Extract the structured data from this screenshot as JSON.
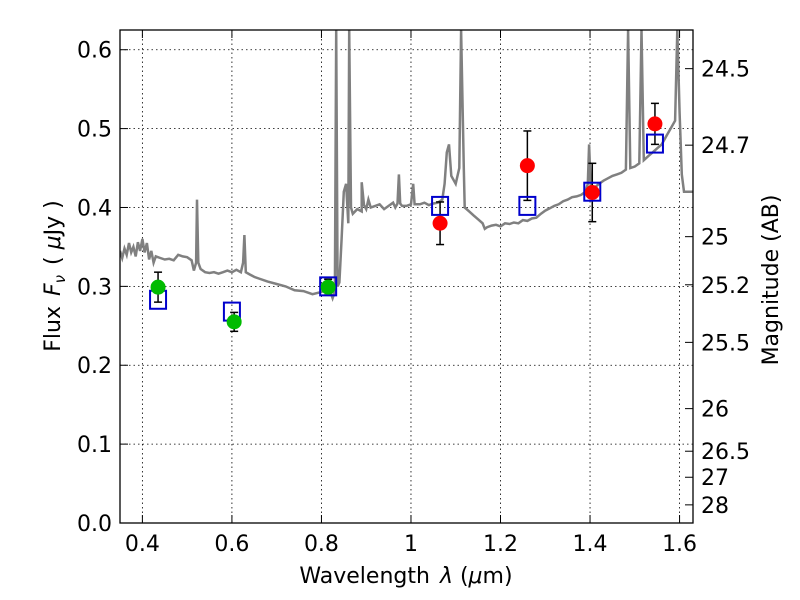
{
  "chart_data": {
    "type": "scatter",
    "xlabel": "Wavelength",
    "xlabel_symbol": "λ",
    "xlabel_unit_open": " (",
    "xlabel_unit_mu": "μ",
    "xlabel_unit_close": "m)",
    "ylabel": "Flux",
    "ylabel_symbol": "F",
    "ylabel_subscript": "ν",
    "ylabel_unit_open": "( ",
    "ylabel_unit_mu": "μ",
    "ylabel_unit_close": "Jy )",
    "y2label": "Magnitude (AB)",
    "xlim": [
      0.35,
      1.63
    ],
    "ylim": [
      0.0,
      0.625
    ],
    "grid": true,
    "x_ticks": [
      0.4,
      0.6,
      0.8,
      1.0,
      1.2,
      1.4,
      1.6
    ],
    "x_tick_labels": [
      "0.4",
      "0.6",
      "0.8",
      "1",
      "1.2",
      "1.4",
      "1.6"
    ],
    "y_ticks": [
      0.0,
      0.1,
      0.2,
      0.3,
      0.4,
      0.5,
      0.6
    ],
    "y_tick_labels": [
      "0.0",
      "0.1",
      "0.2",
      "0.3",
      "0.4",
      "0.5",
      "0.6"
    ],
    "y2_ticks": [
      {
        "label": "24.5",
        "flux": 0.576
      },
      {
        "label": "24.7",
        "flux": 0.479
      },
      {
        "label": "25",
        "flux": 0.363
      },
      {
        "label": "25.2",
        "flux": 0.302
      },
      {
        "label": "25.5",
        "flux": 0.229
      },
      {
        "label": "26",
        "flux": 0.145
      },
      {
        "label": "26.5",
        "flux": 0.091
      },
      {
        "label": "27",
        "flux": 0.058
      },
      {
        "label": "28",
        "flux": 0.023
      }
    ],
    "colors": {
      "spectrum": "#808080",
      "green_points": "#00bb00",
      "red_points": "#ff0000",
      "model_boxes": "#0000cc",
      "errorbars": "#000000"
    },
    "series": [
      {
        "kind": "model-spectrum",
        "points": [
          [
            0.35,
            0.345
          ],
          [
            0.355,
            0.336
          ],
          [
            0.36,
            0.348
          ],
          [
            0.365,
            0.34
          ],
          [
            0.37,
            0.355
          ],
          [
            0.375,
            0.343
          ],
          [
            0.38,
            0.35
          ],
          [
            0.385,
            0.338
          ],
          [
            0.39,
            0.356
          ],
          [
            0.395,
            0.345
          ],
          [
            0.4,
            0.36
          ],
          [
            0.405,
            0.343
          ],
          [
            0.41,
            0.355
          ],
          [
            0.415,
            0.334
          ],
          [
            0.42,
            0.345
          ],
          [
            0.425,
            0.33
          ],
          [
            0.43,
            0.338
          ],
          [
            0.44,
            0.336
          ],
          [
            0.45,
            0.334
          ],
          [
            0.46,
            0.335
          ],
          [
            0.47,
            0.333
          ],
          [
            0.48,
            0.34
          ],
          [
            0.49,
            0.338
          ],
          [
            0.5,
            0.337
          ],
          [
            0.51,
            0.333
          ],
          [
            0.515,
            0.32
          ],
          [
            0.52,
            0.33
          ],
          [
            0.522,
            0.41
          ],
          [
            0.525,
            0.33
          ],
          [
            0.53,
            0.322
          ],
          [
            0.54,
            0.318
          ],
          [
            0.55,
            0.317
          ],
          [
            0.56,
            0.318
          ],
          [
            0.57,
            0.316
          ],
          [
            0.58,
            0.318
          ],
          [
            0.59,
            0.32
          ],
          [
            0.6,
            0.318
          ],
          [
            0.61,
            0.321
          ],
          [
            0.62,
            0.318
          ],
          [
            0.625,
            0.33
          ],
          [
            0.628,
            0.365
          ],
          [
            0.631,
            0.318
          ],
          [
            0.64,
            0.315
          ],
          [
            0.65,
            0.312
          ],
          [
            0.66,
            0.31
          ],
          [
            0.68,
            0.306
          ],
          [
            0.7,
            0.303
          ],
          [
            0.72,
            0.3
          ],
          [
            0.74,
            0.295
          ],
          [
            0.76,
            0.294
          ],
          [
            0.78,
            0.29
          ],
          [
            0.8,
            0.293
          ],
          [
            0.81,
            0.296
          ],
          [
            0.82,
            0.293
          ],
          [
            0.825,
            0.285
          ],
          [
            0.828,
            0.29
          ],
          [
            0.83,
            0.3
          ],
          [
            0.833,
            0.625
          ],
          [
            0.836,
            0.3
          ],
          [
            0.84,
            0.305
          ],
          [
            0.845,
            0.36
          ],
          [
            0.85,
            0.42
          ],
          [
            0.855,
            0.43
          ],
          [
            0.86,
            0.38
          ],
          [
            0.862,
            0.625
          ],
          [
            0.866,
            0.4
          ],
          [
            0.87,
            0.392
          ],
          [
            0.88,
            0.398
          ],
          [
            0.89,
            0.395
          ],
          [
            0.89,
            0.432
          ],
          [
            0.895,
            0.403
          ],
          [
            0.9,
            0.398
          ],
          [
            0.905,
            0.41
          ],
          [
            0.91,
            0.4
          ],
          [
            0.92,
            0.402
          ],
          [
            0.93,
            0.404
          ],
          [
            0.94,
            0.398
          ],
          [
            0.95,
            0.402
          ],
          [
            0.96,
            0.406
          ],
          [
            0.965,
            0.4
          ],
          [
            0.97,
            0.405
          ],
          [
            0.973,
            0.442
          ],
          [
            0.976,
            0.405
          ],
          [
            0.98,
            0.402
          ],
          [
            0.99,
            0.402
          ],
          [
            1.0,
            0.404
          ],
          [
            1.005,
            0.43
          ],
          [
            1.008,
            0.404
          ],
          [
            1.02,
            0.404
          ],
          [
            1.03,
            0.406
          ],
          [
            1.04,
            0.403
          ],
          [
            1.05,
            0.405
          ],
          [
            1.06,
            0.406
          ],
          [
            1.07,
            0.41
          ],
          [
            1.075,
            0.43
          ],
          [
            1.08,
            0.47
          ],
          [
            1.085,
            0.48
          ],
          [
            1.09,
            0.44
          ],
          [
            1.1,
            0.43
          ],
          [
            1.108,
            0.45
          ],
          [
            1.112,
            0.625
          ],
          [
            1.118,
            0.45
          ],
          [
            1.12,
            0.4
          ],
          [
            1.13,
            0.395
          ],
          [
            1.14,
            0.39
          ],
          [
            1.15,
            0.385
          ],
          [
            1.16,
            0.38
          ],
          [
            1.165,
            0.373
          ],
          [
            1.17,
            0.375
          ],
          [
            1.18,
            0.377
          ],
          [
            1.19,
            0.378
          ],
          [
            1.2,
            0.376
          ],
          [
            1.21,
            0.38
          ],
          [
            1.22,
            0.379
          ],
          [
            1.23,
            0.381
          ],
          [
            1.24,
            0.38
          ],
          [
            1.25,
            0.384
          ],
          [
            1.26,
            0.383
          ],
          [
            1.27,
            0.386
          ],
          [
            1.28,
            0.387
          ],
          [
            1.29,
            0.392
          ],
          [
            1.3,
            0.396
          ],
          [
            1.31,
            0.399
          ],
          [
            1.32,
            0.402
          ],
          [
            1.33,
            0.404
          ],
          [
            1.34,
            0.408
          ],
          [
            1.35,
            0.41
          ],
          [
            1.36,
            0.413
          ],
          [
            1.37,
            0.414
          ],
          [
            1.38,
            0.416
          ],
          [
            1.39,
            0.42
          ],
          [
            1.395,
            0.43
          ],
          [
            1.398,
            0.48
          ],
          [
            1.402,
            0.42
          ],
          [
            1.41,
            0.425
          ],
          [
            1.42,
            0.43
          ],
          [
            1.43,
            0.434
          ],
          [
            1.44,
            0.437
          ],
          [
            1.45,
            0.44
          ],
          [
            1.46,
            0.442
          ],
          [
            1.47,
            0.444
          ],
          [
            1.48,
            0.448
          ],
          [
            1.485,
            0.625
          ],
          [
            1.49,
            0.45
          ],
          [
            1.5,
            0.452
          ],
          [
            1.51,
            0.456
          ],
          [
            1.515,
            0.625
          ],
          [
            1.52,
            0.46
          ],
          [
            1.53,
            0.465
          ],
          [
            1.54,
            0.47
          ],
          [
            1.55,
            0.475
          ],
          [
            1.56,
            0.48
          ],
          [
            1.57,
            0.49
          ],
          [
            1.58,
            0.5
          ],
          [
            1.59,
            0.51
          ],
          [
            1.595,
            0.625
          ],
          [
            1.6,
            0.52
          ],
          [
            1.605,
            0.442
          ],
          [
            1.61,
            0.42
          ],
          [
            1.62,
            0.42
          ],
          [
            1.63,
            0.42
          ]
        ]
      },
      {
        "kind": "model-photometry",
        "marker": "open-square",
        "x": [
          0.435,
          0.6,
          0.815,
          1.065,
          1.26,
          1.405,
          1.545
        ],
        "y": [
          0.283,
          0.268,
          0.3,
          0.402,
          0.402,
          0.42,
          0.481
        ]
      },
      {
        "kind": "observed-photometry-green",
        "marker": "filled-circle",
        "x": [
          0.435,
          0.605,
          0.815
        ],
        "y": [
          0.299,
          0.255,
          0.299
        ],
        "yerr": [
          0.019,
          0.012,
          0.01
        ]
      },
      {
        "kind": "observed-photometry-red",
        "marker": "filled-circle",
        "x": [
          1.065,
          1.26,
          1.405,
          1.545
        ],
        "y": [
          0.38,
          0.453,
          0.419,
          0.506
        ],
        "yerr": [
          0.027,
          0.044,
          0.037,
          0.026
        ]
      }
    ]
  }
}
